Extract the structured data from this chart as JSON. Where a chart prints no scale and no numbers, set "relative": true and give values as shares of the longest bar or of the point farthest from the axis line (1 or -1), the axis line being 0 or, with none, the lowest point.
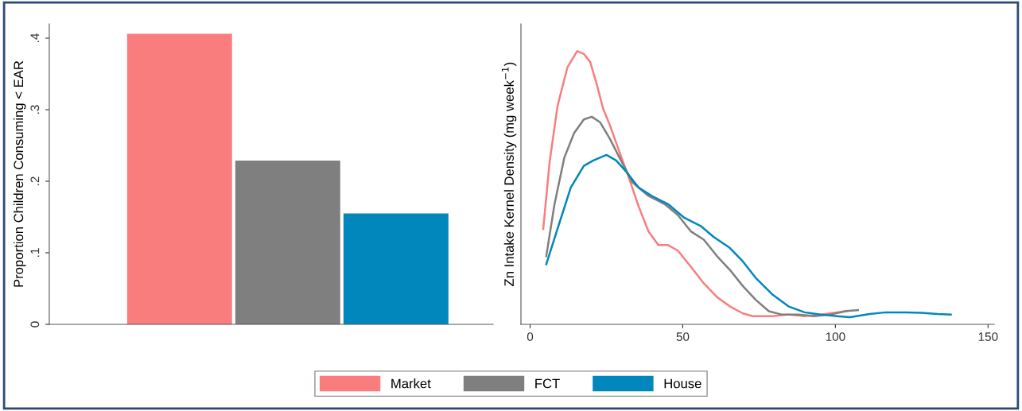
{
  "chart_data": [
    {
      "type": "bar",
      "ylabel": "Proportion Children Consuming < EAR",
      "categories": [
        null
      ],
      "ylim": [
        0,
        0.42
      ],
      "yticks": [
        0,
        {
          "value": 0.1,
          "label": ".1"
        },
        {
          "value": 0.2,
          "label": ".2"
        },
        {
          "value": 0.3,
          "label": ".3"
        },
        {
          "value": 0.4,
          "label": ".4"
        }
      ],
      "grid": false,
      "legend": "bottom",
      "series": [
        {
          "name": "Market",
          "color": "#fa7d7e",
          "values": [
            0.406
          ]
        },
        {
          "name": "FCT",
          "color": "#7f7f7f",
          "values": [
            0.229
          ]
        },
        {
          "name": "House",
          "color": "#0187bb",
          "values": [
            0.155
          ]
        }
      ]
    },
    {
      "type": "line",
      "ylabel": "Zn Intake Kernel Density (mg week$^{−1}$)",
      "relative": true,
      "xlim": [
        -3,
        152
      ],
      "xticks": [
        0,
        50,
        100,
        150
      ],
      "grid": false,
      "series": [
        {
          "color": "#fa7d7e",
          "x": [
            4.3,
            6.4,
            9.0,
            12.2,
            15.4,
            17.6,
            19.7,
            21.8,
            23.9,
            26.1,
            29.3,
            32.4,
            35.6,
            38.8,
            42.0,
            45.2,
            48.4,
            52.7,
            56.9,
            61.2,
            65.4,
            69.7,
            72.9,
            79.3,
            84.6,
            89.9,
            95.2,
            100.5,
            103.7
          ],
          "values": [
            0.349,
            0.595,
            0.8,
            0.94,
            1.0,
            0.99,
            0.96,
            0.88,
            0.79,
            0.73,
            0.63,
            0.535,
            0.43,
            0.34,
            0.29,
            0.29,
            0.27,
            0.21,
            0.15,
            0.1,
            0.066,
            0.04,
            0.03,
            0.03,
            0.036,
            0.03,
            0.036,
            0.044,
            0.049
          ]
        },
        {
          "color": "#7f7f7f",
          "x": [
            5.3,
            8.0,
            11.2,
            14.4,
            17.6,
            20.2,
            22.9,
            26.1,
            29.3,
            33.5,
            38.8,
            44.1,
            48.4,
            52.7,
            56.9,
            61.2,
            65.4,
            69.7,
            73.9,
            78.2,
            82.4,
            87.8,
            93.1,
            98.4,
            103.7,
            107.4
          ],
          "values": [
            0.25,
            0.44,
            0.61,
            0.7,
            0.75,
            0.76,
            0.74,
            0.68,
            0.61,
            0.52,
            0.47,
            0.44,
            0.4,
            0.34,
            0.31,
            0.25,
            0.2,
            0.14,
            0.09,
            0.048,
            0.036,
            0.036,
            0.03,
            0.036,
            0.049,
            0.052
          ]
        },
        {
          "color": "#0187bb",
          "x": [
            5.3,
            9.0,
            13.3,
            17.6,
            20.7,
            25.0,
            28.2,
            31.4,
            35.6,
            39.9,
            45.2,
            50.5,
            55.9,
            60.1,
            65.4,
            69.7,
            73.9,
            79.3,
            84.6,
            89.9,
            95.2,
            100.5,
            104.8,
            111.2,
            116.5,
            122.9,
            128.2,
            133.5,
            137.8
          ],
          "values": [
            0.22,
            0.35,
            0.5,
            0.58,
            0.6,
            0.62,
            0.6,
            0.56,
            0.5,
            0.47,
            0.44,
            0.39,
            0.36,
            0.32,
            0.28,
            0.23,
            0.17,
            0.11,
            0.066,
            0.044,
            0.036,
            0.03,
            0.026,
            0.038,
            0.044,
            0.044,
            0.042,
            0.038,
            0.036
          ]
        }
      ]
    }
  ]
}
